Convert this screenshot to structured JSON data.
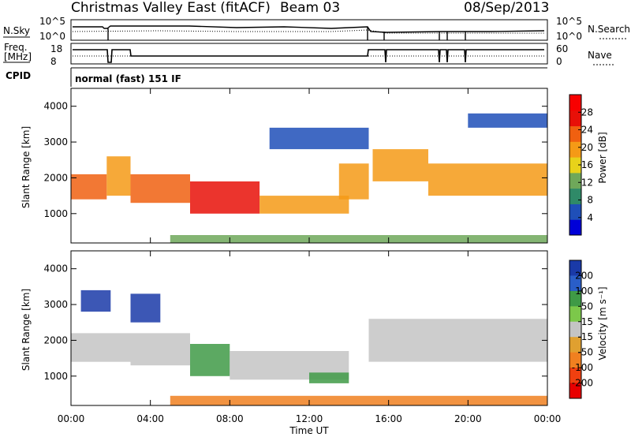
{
  "header": {
    "title": "Christmas Valley East (fitACF)",
    "beam": "Beam 03",
    "date": "08/Sep/2013"
  },
  "top_panels": {
    "nsky_label": "N.Sky",
    "nsearch_label": "N.Search",
    "nsky_ticks": [
      "10^5",
      "10^0"
    ],
    "freq_label_1": "Freq.",
    "freq_label_2": "[MHz]",
    "freq_ticks": [
      "18",
      "8"
    ],
    "nave_label": "Nave",
    "nave_ticks": [
      "60",
      "0"
    ],
    "cpid_label": "CPID",
    "cpid_text": "normal (fast) 151 IF"
  },
  "power_colorbar": {
    "label": "Power [dB]",
    "ticks": [
      "4",
      "8",
      "12",
      "16",
      "20",
      "24",
      "28"
    ],
    "colors": [
      "#0000d8",
      "#1f4fb8",
      "#2f8a68",
      "#6fa85a",
      "#e8d21a",
      "#f59a16",
      "#f06010",
      "#e81008",
      "#f80000"
    ]
  },
  "velocity_colorbar": {
    "label": "Velocity [m s⁻¹]",
    "ticks": [
      "200",
      "100",
      "50",
      "15",
      "-15",
      "-50",
      "-100",
      "-200"
    ],
    "colors": [
      "#1a3aa8",
      "#2a5ec8",
      "#3f9a46",
      "#7cc84a",
      "#c4c4c4",
      "#e0a030",
      "#f08020",
      "#f04010",
      "#e80000"
    ]
  },
  "axes": {
    "ylabel": "Slant Range [km]",
    "xlabel": "Time UT",
    "y_ticks": [
      "1000",
      "2000",
      "3000",
      "4000"
    ],
    "x_ticks": [
      "00:00",
      "04:00",
      "08:00",
      "12:00",
      "16:00",
      "20:00",
      "00:00"
    ]
  },
  "chart_data": {
    "type": "heatmap",
    "title": "Christmas Valley East (fitACF)",
    "xlabel": "Time UT",
    "ylabel": "Slant Range [km]",
    "xlim": [
      0,
      24
    ],
    "ylim": [
      180,
      4500
    ],
    "panels": [
      {
        "name": "Power",
        "units": "dB",
        "colorbar_ticks": [
          4,
          8,
          12,
          16,
          20,
          24,
          28
        ],
        "bands": [
          {
            "t0": 0.0,
            "t1": 1.8,
            "r0": 1400,
            "r1": 2100,
            "value": 22
          },
          {
            "t0": 1.8,
            "t1": 3.0,
            "r0": 1500,
            "r1": 2600,
            "value": 18
          },
          {
            "t0": 3.0,
            "t1": 6.0,
            "r0": 1300,
            "r1": 2100,
            "value": 24
          },
          {
            "t0": 6.0,
            "t1": 9.5,
            "r0": 1000,
            "r1": 1900,
            "value": 26
          },
          {
            "t0": 9.5,
            "t1": 14.0,
            "r0": 1000,
            "r1": 1500,
            "value": 20
          },
          {
            "t0": 13.5,
            "t1": 15.0,
            "r0": 1400,
            "r1": 2400,
            "value": 18
          },
          {
            "t0": 15.2,
            "t1": 18.0,
            "r0": 1900,
            "r1": 2800,
            "value": 20
          },
          {
            "t0": 18.0,
            "t1": 24.0,
            "r0": 1500,
            "r1": 2400,
            "value": 20
          },
          {
            "t0": 10.0,
            "t1": 15.0,
            "r0": 2800,
            "r1": 3400,
            "value": 6
          },
          {
            "t0": 20.0,
            "t1": 24.0,
            "r0": 3400,
            "r1": 3800,
            "value": 6
          },
          {
            "t0": 5.0,
            "t1": 24.0,
            "r0": 180,
            "r1": 400,
            "value": 14
          }
        ]
      },
      {
        "name": "Velocity",
        "units": "m s-1",
        "colorbar_ticks": [
          200,
          100,
          50,
          15,
          -15,
          -50,
          -100,
          -200
        ],
        "bands": [
          {
            "t0": 0.0,
            "t1": 3.0,
            "r0": 1400,
            "r1": 2200,
            "value": 0
          },
          {
            "t0": 0.5,
            "t1": 2.0,
            "r0": 2800,
            "r1": 3400,
            "value": 150
          },
          {
            "t0": 3.0,
            "t1": 4.5,
            "r0": 2500,
            "r1": 3300,
            "value": 160
          },
          {
            "t0": 3.0,
            "t1": 6.0,
            "r0": 1300,
            "r1": 2200,
            "value": 0
          },
          {
            "t0": 6.0,
            "t1": 8.0,
            "r0": 1000,
            "r1": 1900,
            "value": 40
          },
          {
            "t0": 8.0,
            "t1": 14.0,
            "r0": 900,
            "r1": 1700,
            "value": 0
          },
          {
            "t0": 12.0,
            "t1": 14.0,
            "r0": 800,
            "r1": 1100,
            "value": 40
          },
          {
            "t0": 15.0,
            "t1": 24.0,
            "r0": 1400,
            "r1": 2600,
            "value": 0
          },
          {
            "t0": 5.0,
            "t1": 24.0,
            "r0": 180,
            "r1": 450,
            "value": -40
          }
        ]
      }
    ]
  }
}
